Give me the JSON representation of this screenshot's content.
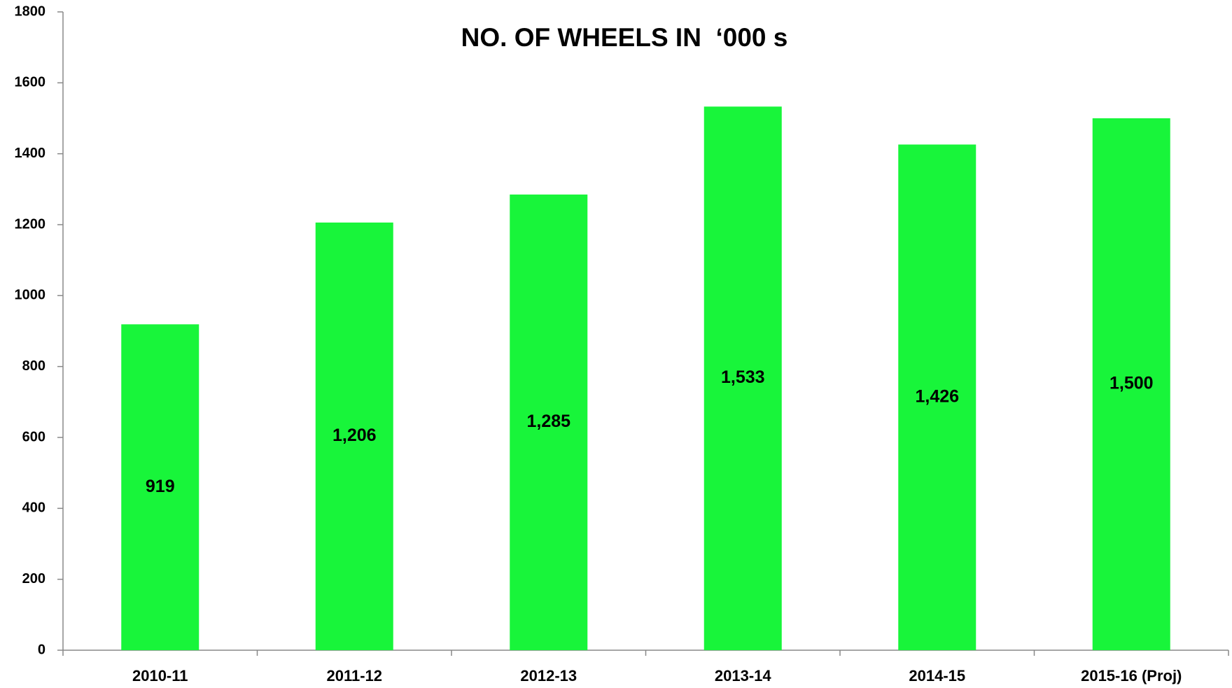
{
  "chart_data": {
    "type": "bar",
    "title": "NO. OF WHEELS IN  ‘000 s",
    "categories": [
      "2010-11",
      "2011-12",
      "2012-13",
      "2013-14",
      "2014-15",
      "2015-16 (Proj)"
    ],
    "values": [
      919,
      1206,
      1285,
      1533,
      1426,
      1500
    ],
    "value_labels": [
      "919",
      "1,206",
      "1,285",
      "1,533",
      "1,426",
      "1,500"
    ],
    "color": "#18f53a",
    "ylim": [
      0,
      1800
    ],
    "yticks": [
      0,
      200,
      400,
      600,
      800,
      1000,
      1200,
      1400,
      1600,
      1800
    ],
    "grid": false
  }
}
